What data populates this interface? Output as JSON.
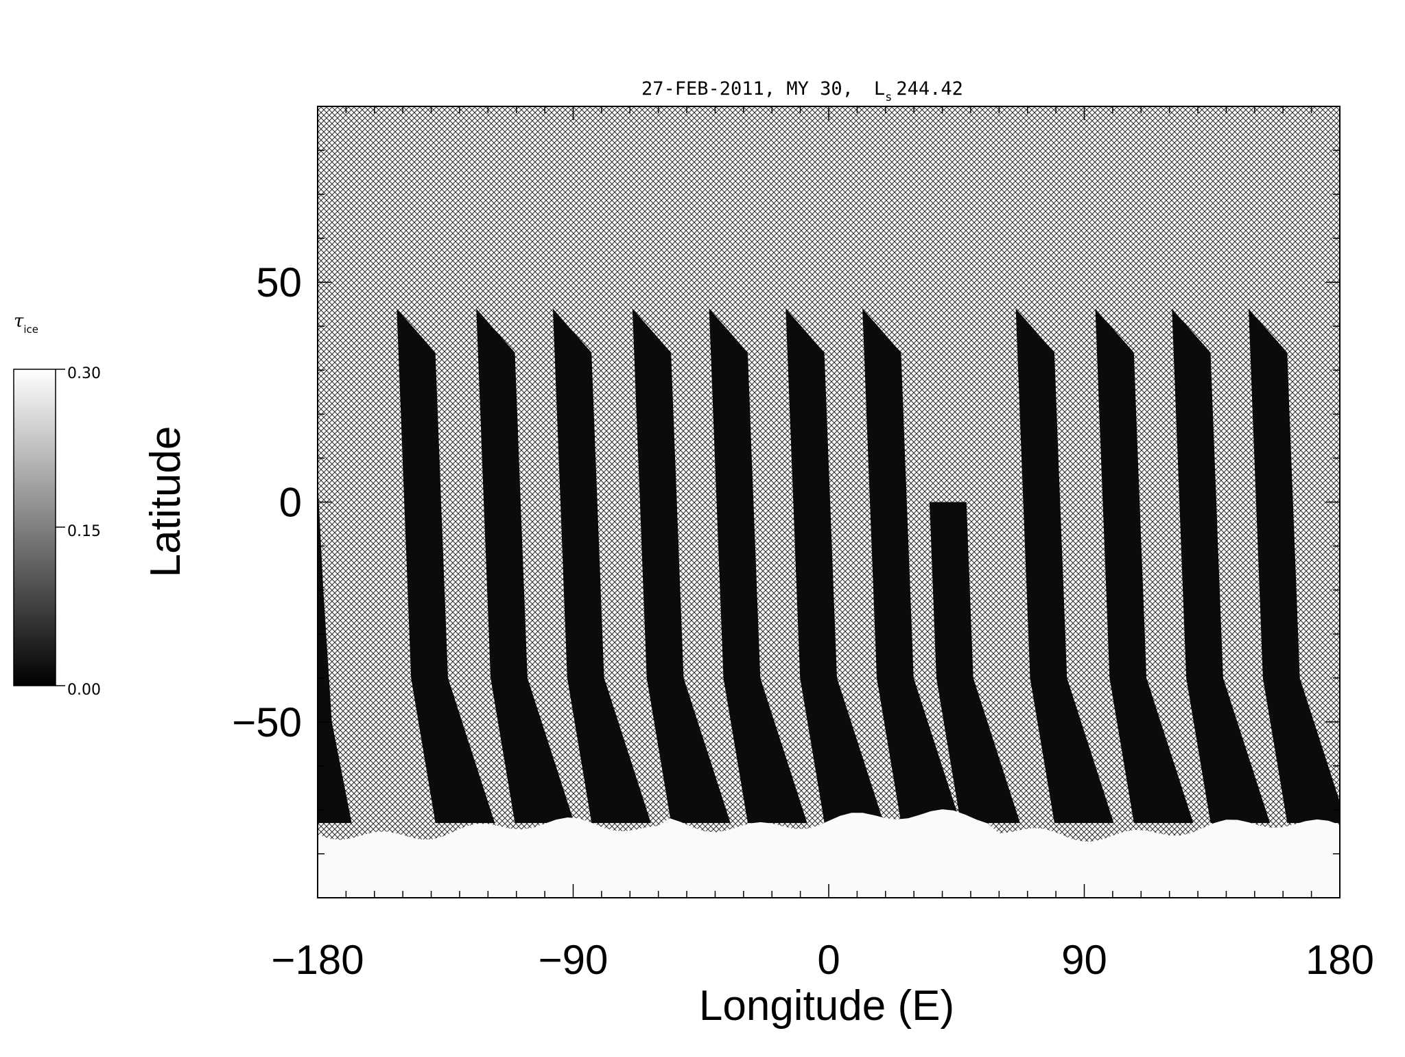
{
  "chart_data": {
    "type": "heatmap",
    "title_date": "27-FEB-2011, MY 30,",
    "title_ls_symbol": "L",
    "title_ls_subscript": "s",
    "title_ls_value": "244.42",
    "xlabel": "Longitude (E)",
    "ylabel": "Latitude",
    "xlim": [
      -180,
      180
    ],
    "ylim": [
      -90,
      90
    ],
    "x_ticks": [
      -180,
      -90,
      0,
      90,
      180
    ],
    "x_tick_labels": [
      "−180",
      "−90",
      "0",
      "90",
      "180"
    ],
    "y_ticks": [
      -50,
      0,
      50
    ],
    "y_tick_labels": [
      "−50",
      "0",
      "50"
    ],
    "no_data_fill": "crosshatch",
    "colorbar": {
      "label_symbol": "τ",
      "label_subscript": "ice",
      "range": [
        0.0,
        0.3
      ],
      "tick_labels": [
        "0.30",
        "0.15",
        "0.00"
      ],
      "colors": [
        "#000000",
        "#ffffff"
      ]
    },
    "swaths": [
      {
        "center_lon_at_0": -143,
        "north_lat": 44,
        "south_lat": -73
      },
      {
        "center_lon_at_0": -115,
        "north_lat": 44,
        "south_lat": -73
      },
      {
        "center_lon_at_0": -88,
        "north_lat": 44,
        "south_lat": -73
      },
      {
        "center_lon_at_0": -60,
        "north_lat": 44,
        "south_lat": -73
      },
      {
        "center_lon_at_0": -33,
        "north_lat": 44,
        "south_lat": -73
      },
      {
        "center_lon_at_0": -6,
        "north_lat": 44,
        "south_lat": -73
      },
      {
        "center_lon_at_0": 21,
        "north_lat": 44,
        "south_lat": -73
      },
      {
        "center_lon_at_0": 42,
        "north_lat": 0,
        "south_lat": -73
      },
      {
        "center_lon_at_0": 75,
        "north_lat": 44,
        "south_lat": -73
      },
      {
        "center_lon_at_0": 103,
        "north_lat": 44,
        "south_lat": -73
      },
      {
        "center_lon_at_0": 130,
        "north_lat": 44,
        "south_lat": -73
      },
      {
        "center_lon_at_0": 157,
        "north_lat": 44,
        "south_lat": -73
      }
    ],
    "south_polar_cap": {
      "north_edge_lat": -73,
      "tau_ice": 0.3
    },
    "swath_tau_ice": 0.0
  }
}
